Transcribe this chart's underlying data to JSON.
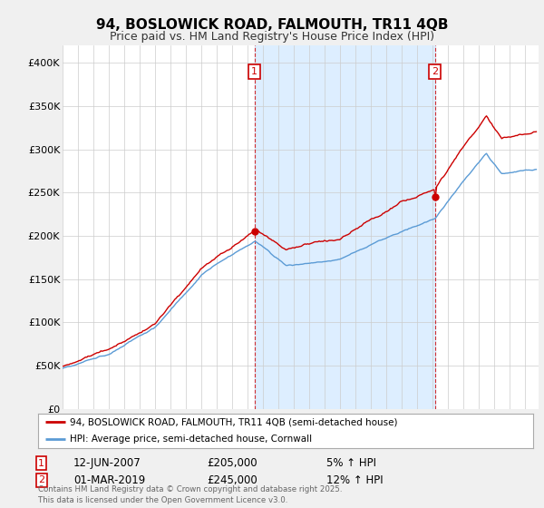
{
  "title": "94, BOSLOWICK ROAD, FALMOUTH, TR11 4QB",
  "subtitle": "Price paid vs. HM Land Registry's House Price Index (HPI)",
  "ylabel_ticks": [
    "£0",
    "£50K",
    "£100K",
    "£150K",
    "£200K",
    "£250K",
    "£300K",
    "£350K",
    "£400K"
  ],
  "ytick_vals": [
    0,
    50000,
    100000,
    150000,
    200000,
    250000,
    300000,
    350000,
    400000
  ],
  "ylim": [
    0,
    420000
  ],
  "xlim_start": 1995.0,
  "xlim_end": 2025.9,
  "sale1_year": 2007.45,
  "sale1_price": 205000,
  "sale1_label": "1",
  "sale2_year": 2019.17,
  "sale2_price": 245000,
  "sale2_label": "2",
  "line_color_property": "#cc0000",
  "line_color_hpi": "#5b9bd5",
  "shade_color": "#ddeeff",
  "annotation1_date": "12-JUN-2007",
  "annotation1_price": "£205,000",
  "annotation1_pct": "5% ↑ HPI",
  "annotation2_date": "01-MAR-2019",
  "annotation2_price": "£245,000",
  "annotation2_pct": "12% ↑ HPI",
  "legend_label1": "94, BOSLOWICK ROAD, FALMOUTH, TR11 4QB (semi-detached house)",
  "legend_label2": "HPI: Average price, semi-detached house, Cornwall",
  "footer": "Contains HM Land Registry data © Crown copyright and database right 2025.\nThis data is licensed under the Open Government Licence v3.0.",
  "bg_color": "#f0f0f0",
  "plot_bg_color": "#ffffff"
}
